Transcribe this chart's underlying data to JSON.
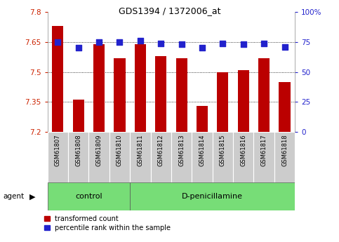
{
  "title": "GDS1394 / 1372006_at",
  "samples": [
    "GSM61807",
    "GSM61808",
    "GSM61809",
    "GSM61810",
    "GSM61811",
    "GSM61812",
    "GSM61813",
    "GSM61814",
    "GSM61815",
    "GSM61816",
    "GSM61817",
    "GSM61818"
  ],
  "transformed_counts": [
    7.73,
    7.36,
    7.64,
    7.57,
    7.64,
    7.58,
    7.57,
    7.33,
    7.5,
    7.51,
    7.57,
    7.45
  ],
  "percentile_ranks": [
    75,
    70,
    75,
    75,
    76,
    74,
    73,
    70,
    74,
    73,
    74,
    71
  ],
  "ylim_left": [
    7.2,
    7.8
  ],
  "ylim_right": [
    0,
    100
  ],
  "yticks_left": [
    7.2,
    7.35,
    7.5,
    7.65,
    7.8
  ],
  "yticks_right": [
    0,
    25,
    50,
    75,
    100
  ],
  "ytick_labels_left": [
    "7.2",
    "7.35",
    "7.5",
    "7.65",
    "7.8"
  ],
  "ytick_labels_right": [
    "0",
    "25",
    "50",
    "75",
    "100%"
  ],
  "hlines": [
    7.35,
    7.5,
    7.65
  ],
  "control_group": [
    0,
    1,
    2,
    3
  ],
  "treatment_group": [
    4,
    5,
    6,
    7,
    8,
    9,
    10,
    11
  ],
  "control_label": "control",
  "treatment_label": "D-penicillamine",
  "agent_label": "agent",
  "bar_color": "#bb0000",
  "dot_color": "#2222cc",
  "grid_color": "#000000",
  "bar_width": 0.55,
  "dot_size": 28,
  "xticklabel_bg": "#cccccc",
  "background_green": "#77dd77",
  "legend_bar_label": "transformed count",
  "legend_dot_label": "percentile rank within the sample",
  "left_tick_color": "#cc2200",
  "right_tick_color": "#2222cc",
  "figsize": [
    4.83,
    3.45
  ],
  "dpi": 100
}
